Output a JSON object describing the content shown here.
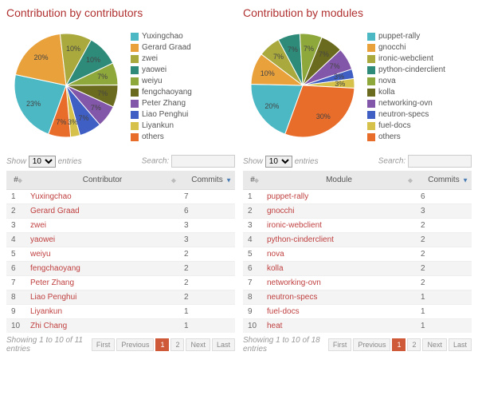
{
  "left": {
    "title": "Contribution by contributors",
    "chart": {
      "type": "pie",
      "background_color": "#ffffff",
      "label_fontsize": 9,
      "slices": [
        {
          "label": "Yuxingchao",
          "pct": 23,
          "color": "#4cb8c4",
          "show_label": true
        },
        {
          "label": "Gerard Graad",
          "pct": 20,
          "color": "#e9a13b",
          "show_label": true
        },
        {
          "label": "zwei",
          "pct": 10,
          "color": "#a9a93e",
          "show_label": true
        },
        {
          "label": "yaowei",
          "pct": 10,
          "color": "#2e8b7a",
          "show_label": true
        },
        {
          "label": "weiyu",
          "pct": 7,
          "color": "#8fa83c",
          "show_label": true
        },
        {
          "label": "fengchaoyang",
          "pct": 7,
          "color": "#6b6b1f",
          "show_label": true
        },
        {
          "label": "Peter Zhang",
          "pct": 7,
          "color": "#8256a8",
          "show_label": true
        },
        {
          "label": "Liao Penghui",
          "pct": 7,
          "color": "#3f5fc4",
          "show_label": true
        },
        {
          "label": "Liyankun",
          "pct": 3,
          "color": "#d6c24a",
          "show_label": true
        },
        {
          "label": "others",
          "pct": 7,
          "color": "#e86c2a",
          "show_label": true
        }
      ]
    },
    "show_label": "Show",
    "entries_label": "entries",
    "page_size": "10",
    "search_label": "Search:",
    "columns": [
      "#",
      "Contributor",
      "Commits"
    ],
    "rows": [
      [
        "1",
        "Yuxingchao",
        "7"
      ],
      [
        "2",
        "Gerard Graad",
        "6"
      ],
      [
        "3",
        "zwei",
        "3"
      ],
      [
        "4",
        "yaowei",
        "3"
      ],
      [
        "5",
        "weiyu",
        "2"
      ],
      [
        "6",
        "fengchaoyang",
        "2"
      ],
      [
        "7",
        "Peter Zhang",
        "2"
      ],
      [
        "8",
        "Liao Penghui",
        "2"
      ],
      [
        "9",
        "Liyankun",
        "1"
      ],
      [
        "10",
        "Zhi Chang",
        "1"
      ]
    ],
    "info": "Showing 1 to 10 of 11 entries",
    "pager": {
      "first": "First",
      "prev": "Previous",
      "pages": [
        "1",
        "2"
      ],
      "active": 0,
      "next": "Next",
      "last": "Last"
    }
  },
  "right": {
    "title": "Contribution by modules",
    "chart": {
      "type": "pie",
      "background_color": "#ffffff",
      "label_fontsize": 9,
      "slices": [
        {
          "label": "puppet-rally",
          "pct": 20,
          "color": "#4cb8c4",
          "show_label": true
        },
        {
          "label": "gnocchi",
          "pct": 10,
          "color": "#e9a13b",
          "show_label": true
        },
        {
          "label": "ironic-webclient",
          "pct": 7,
          "color": "#a9a93e",
          "show_label": true
        },
        {
          "label": "python-cinderclient",
          "pct": 7,
          "color": "#2e8b7a",
          "show_label": true
        },
        {
          "label": "nova",
          "pct": 7,
          "color": "#8fa83c",
          "show_label": true
        },
        {
          "label": "kolla",
          "pct": 7,
          "color": "#6b6b1f",
          "show_label": true
        },
        {
          "label": "networking-ovn",
          "pct": 7,
          "color": "#8256a8",
          "show_label": true
        },
        {
          "label": "neutron-specs",
          "pct": 3,
          "color": "#3f5fc4",
          "show_label": true
        },
        {
          "label": "fuel-docs",
          "pct": 3,
          "color": "#d6c24a",
          "show_label": true
        },
        {
          "label": "others",
          "pct": 30,
          "color": "#e86c2a",
          "show_label": true
        }
      ]
    },
    "show_label": "Show",
    "entries_label": "entries",
    "page_size": "10",
    "search_label": "Search:",
    "columns": [
      "#",
      "Module",
      "Commits"
    ],
    "rows": [
      [
        "1",
        "puppet-rally",
        "6"
      ],
      [
        "2",
        "gnocchi",
        "3"
      ],
      [
        "3",
        "ironic-webclient",
        "2"
      ],
      [
        "4",
        "python-cinderclient",
        "2"
      ],
      [
        "5",
        "nova",
        "2"
      ],
      [
        "6",
        "kolla",
        "2"
      ],
      [
        "7",
        "networking-ovn",
        "2"
      ],
      [
        "8",
        "neutron-specs",
        "1"
      ],
      [
        "9",
        "fuel-docs",
        "1"
      ],
      [
        "10",
        "heat",
        "1"
      ]
    ],
    "info": "Showing 1 to 10 of 18 entries",
    "pager": {
      "first": "First",
      "prev": "Previous",
      "pages": [
        "1",
        "2"
      ],
      "active": 0,
      "next": "Next",
      "last": "Last"
    }
  }
}
